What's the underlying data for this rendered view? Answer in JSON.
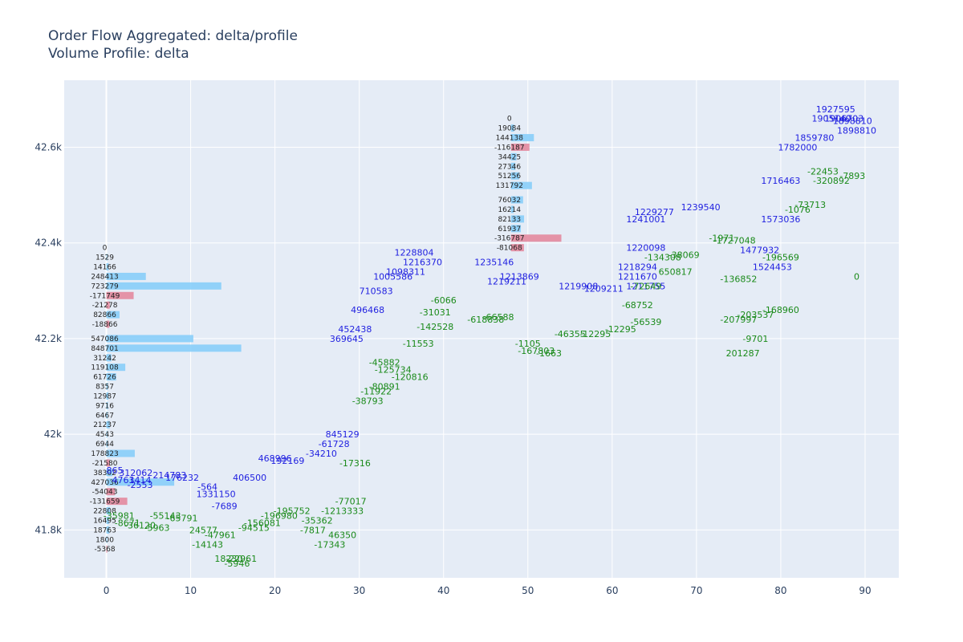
{
  "chart_data": {
    "type": "bar",
    "title": "Order Flow Aggregated: delta/profile",
    "subtitle": "Volume Profile: delta",
    "xlim": [
      -5,
      94
    ],
    "ylim": [
      41.7,
      42.74
    ],
    "x_ticks": [
      0,
      10,
      20,
      30,
      40,
      50,
      60,
      70,
      80,
      90
    ],
    "y_ticks": [
      {
        "value": 41.8,
        "label": "41.8k"
      },
      {
        "value": 42.0,
        "label": "42k"
      },
      {
        "value": 42.2,
        "label": "42.2k"
      },
      {
        "value": 42.4,
        "label": "42.4k"
      },
      {
        "value": 42.6,
        "label": "42.6k"
      }
    ],
    "grid": true,
    "colors": {
      "background": "#e5ecf6",
      "grid": "#ffffff",
      "positive": "#87cefa",
      "negative": "#e3899e",
      "text": "#2a3f5f",
      "blue_label": "#1f1fe0",
      "green_label": "#1a8a1a"
    },
    "series": [
      {
        "start_x": 0,
        "bars": [
          {
            "price": 42.39,
            "value": 0
          },
          {
            "price": 42.37,
            "value": 1529
          },
          {
            "price": 42.35,
            "value": 14166
          },
          {
            "price": 42.33,
            "value": 248413
          },
          {
            "price": 42.31,
            "value": 723279
          },
          {
            "price": 42.29,
            "value": -171749
          },
          {
            "price": 42.27,
            "value": -21278
          },
          {
            "price": 42.25,
            "value": 82866
          },
          {
            "price": 42.23,
            "value": -18866
          },
          {
            "price": 42.2,
            "value": 547086
          },
          {
            "price": 42.18,
            "value": 848701
          },
          {
            "price": 42.16,
            "value": 31242
          },
          {
            "price": 42.14,
            "value": 119108
          },
          {
            "price": 42.12,
            "value": 61726
          },
          {
            "price": 42.1,
            "value": 8357
          },
          {
            "price": 42.08,
            "value": 12987
          },
          {
            "price": 42.06,
            "value": 9716
          },
          {
            "price": 42.04,
            "value": 6467
          },
          {
            "price": 42.02,
            "value": 21237
          },
          {
            "price": 42.0,
            "value": 4543
          },
          {
            "price": 41.98,
            "value": 6944
          },
          {
            "price": 41.96,
            "value": 178823
          },
          {
            "price": 41.94,
            "value": -21580
          },
          {
            "price": 41.92,
            "value": 38302
          },
          {
            "price": 41.9,
            "value": 427036
          },
          {
            "price": 41.88,
            "value": -54043
          },
          {
            "price": 41.86,
            "value": -131659
          },
          {
            "price": 41.84,
            "value": 22808
          },
          {
            "price": 41.82,
            "value": 16495
          },
          {
            "price": 41.8,
            "value": 18763
          },
          {
            "price": 41.78,
            "value": 1800
          },
          {
            "price": 41.76,
            "value": -5368
          }
        ]
      },
      {
        "start_x": 48,
        "bars": [
          {
            "price": 42.66,
            "value": 0
          },
          {
            "price": 42.64,
            "value": 19084
          },
          {
            "price": 42.62,
            "value": 144138
          },
          {
            "price": 42.6,
            "value": -116187
          },
          {
            "price": 42.58,
            "value": 34425
          },
          {
            "price": 42.56,
            "value": 27346
          },
          {
            "price": 42.54,
            "value": 51256
          },
          {
            "price": 42.52,
            "value": 131792
          },
          {
            "price": 42.49,
            "value": 76032
          },
          {
            "price": 42.47,
            "value": 16214
          },
          {
            "price": 42.45,
            "value": 82133
          },
          {
            "price": 42.43,
            "value": 61937
          },
          {
            "price": 42.41,
            "value": -316787
          },
          {
            "price": 42.39,
            "value": -81068
          }
        ]
      }
    ],
    "annotations": [
      {
        "x": 36.5,
        "y": 42.38,
        "text": "1228804",
        "color": "blue"
      },
      {
        "x": 37.5,
        "y": 42.36,
        "text": "1216370",
        "color": "blue"
      },
      {
        "x": 35.5,
        "y": 42.34,
        "text": "1098311",
        "color": "blue"
      },
      {
        "x": 34.0,
        "y": 42.33,
        "text": "1005586",
        "color": "blue"
      },
      {
        "x": 46.0,
        "y": 42.36,
        "text": "1235146",
        "color": "blue"
      },
      {
        "x": 47.5,
        "y": 42.32,
        "text": "1219211",
        "color": "blue"
      },
      {
        "x": 49.0,
        "y": 42.33,
        "text": "1213869",
        "color": "blue"
      },
      {
        "x": 32.0,
        "y": 42.3,
        "text": "710583",
        "color": "blue"
      },
      {
        "x": 31.0,
        "y": 42.26,
        "text": "496468",
        "color": "blue"
      },
      {
        "x": 29.5,
        "y": 42.22,
        "text": "452438",
        "color": "blue"
      },
      {
        "x": 28.5,
        "y": 42.2,
        "text": "369645",
        "color": "blue"
      },
      {
        "x": 28.0,
        "y": 42.0,
        "text": "845129",
        "color": "blue"
      },
      {
        "x": 27.0,
        "y": 41.98,
        "text": "-61728",
        "color": "blue"
      },
      {
        "x": 25.5,
        "y": 41.96,
        "text": "-34210",
        "color": "blue"
      },
      {
        "x": 20.0,
        "y": 41.95,
        "text": "468996",
        "color": "blue"
      },
      {
        "x": 21.5,
        "y": 41.945,
        "text": "192169",
        "color": "blue"
      },
      {
        "x": 17.0,
        "y": 41.91,
        "text": "406500",
        "color": "blue"
      },
      {
        "x": 12.0,
        "y": 41.89,
        "text": "-564",
        "color": "blue"
      },
      {
        "x": 13.0,
        "y": 41.875,
        "text": "1331150",
        "color": "blue"
      },
      {
        "x": 1.0,
        "y": 41.925,
        "text": "865",
        "color": "blue"
      },
      {
        "x": 3.5,
        "y": 41.92,
        "text": "312062",
        "color": "blue"
      },
      {
        "x": 2.0,
        "y": 41.905,
        "text": "4763",
        "color": "blue"
      },
      {
        "x": 4.0,
        "y": 41.905,
        "text": "1414",
        "color": "blue"
      },
      {
        "x": 7.5,
        "y": 41.915,
        "text": "214783",
        "color": "blue"
      },
      {
        "x": 9.0,
        "y": 41.91,
        "text": "176232",
        "color": "blue"
      },
      {
        "x": 4.0,
        "y": 41.895,
        "text": "-2553",
        "color": "blue"
      },
      {
        "x": 14.0,
        "y": 41.85,
        "text": "-7689",
        "color": "blue"
      },
      {
        "x": 63.0,
        "y": 42.35,
        "text": "1218294",
        "color": "blue"
      },
      {
        "x": 63.0,
        "y": 42.33,
        "text": "1211670",
        "color": "blue"
      },
      {
        "x": 64.0,
        "y": 42.31,
        "text": "1211755",
        "color": "blue"
      },
      {
        "x": 64.0,
        "y": 42.39,
        "text": "1220098",
        "color": "blue"
      },
      {
        "x": 65.0,
        "y": 42.465,
        "text": "1229277",
        "color": "blue"
      },
      {
        "x": 64.0,
        "y": 42.45,
        "text": "1241001",
        "color": "blue"
      },
      {
        "x": 70.5,
        "y": 42.475,
        "text": "1239540",
        "color": "blue"
      },
      {
        "x": 56.0,
        "y": 42.31,
        "text": "1219908",
        "color": "blue"
      },
      {
        "x": 59.0,
        "y": 42.305,
        "text": "1209211",
        "color": "blue"
      },
      {
        "x": 79.0,
        "y": 42.35,
        "text": "1524453",
        "color": "blue"
      },
      {
        "x": 77.5,
        "y": 42.385,
        "text": "1477932",
        "color": "blue"
      },
      {
        "x": 80.0,
        "y": 42.45,
        "text": "1573036",
        "color": "blue"
      },
      {
        "x": 80.0,
        "y": 42.53,
        "text": "1716463",
        "color": "blue"
      },
      {
        "x": 82.0,
        "y": 42.6,
        "text": "1782000",
        "color": "blue"
      },
      {
        "x": 84.0,
        "y": 42.62,
        "text": "1859780",
        "color": "blue"
      },
      {
        "x": 86.0,
        "y": 42.66,
        "text": "1905140",
        "color": "blue"
      },
      {
        "x": 86.5,
        "y": 42.68,
        "text": "1927595",
        "color": "blue"
      },
      {
        "x": 87.5,
        "y": 42.66,
        "text": "1906703",
        "color": "blue"
      },
      {
        "x": 88.5,
        "y": 42.655,
        "text": "1898810",
        "color": "blue"
      },
      {
        "x": 89.0,
        "y": 42.635,
        "text": "1898810",
        "color": "blue"
      },
      {
        "x": 40.0,
        "y": 42.28,
        "text": "-6066",
        "color": "green"
      },
      {
        "x": 39.0,
        "y": 42.255,
        "text": "-31031",
        "color": "green"
      },
      {
        "x": 39.0,
        "y": 42.225,
        "text": "-142528",
        "color": "green"
      },
      {
        "x": 37.0,
        "y": 42.19,
        "text": "-11553",
        "color": "green"
      },
      {
        "x": 33.0,
        "y": 42.15,
        "text": "-45882",
        "color": "green"
      },
      {
        "x": 34.0,
        "y": 42.135,
        "text": "-125734",
        "color": "green"
      },
      {
        "x": 36.0,
        "y": 42.12,
        "text": "-120816",
        "color": "green"
      },
      {
        "x": 33.0,
        "y": 42.1,
        "text": "-80891",
        "color": "green"
      },
      {
        "x": 32.0,
        "y": 42.09,
        "text": "-11922",
        "color": "green"
      },
      {
        "x": 31.0,
        "y": 42.07,
        "text": "-38793",
        "color": "green"
      },
      {
        "x": 29.5,
        "y": 41.94,
        "text": "-17316",
        "color": "green"
      },
      {
        "x": 29.0,
        "y": 41.86,
        "text": "-77017",
        "color": "green"
      },
      {
        "x": 28.0,
        "y": 41.84,
        "text": "-1213333",
        "color": "green"
      },
      {
        "x": 28.0,
        "y": 41.79,
        "text": "46350",
        "color": "green"
      },
      {
        "x": 26.5,
        "y": 41.77,
        "text": "-17343",
        "color": "green"
      },
      {
        "x": 25.0,
        "y": 41.82,
        "text": "-35362",
        "color": "green"
      },
      {
        "x": 24.5,
        "y": 41.8,
        "text": "-7817",
        "color": "green"
      },
      {
        "x": 22.0,
        "y": 41.84,
        "text": "-195752",
        "color": "green"
      },
      {
        "x": 20.5,
        "y": 41.83,
        "text": "-196980",
        "color": "green"
      },
      {
        "x": 18.5,
        "y": 41.815,
        "text": "-156081",
        "color": "green"
      },
      {
        "x": 17.5,
        "y": 41.805,
        "text": "-94515",
        "color": "green"
      },
      {
        "x": 11.5,
        "y": 41.8,
        "text": "24577",
        "color": "green"
      },
      {
        "x": 13.5,
        "y": 41.79,
        "text": "-47961",
        "color": "green"
      },
      {
        "x": 12.0,
        "y": 41.77,
        "text": "-14143",
        "color": "green"
      },
      {
        "x": 14.5,
        "y": 41.74,
        "text": "18230",
        "color": "green"
      },
      {
        "x": 16.0,
        "y": 41.74,
        "text": "-22961",
        "color": "green"
      },
      {
        "x": 15.5,
        "y": 41.73,
        "text": "-5946",
        "color": "green"
      },
      {
        "x": 1.5,
        "y": 41.83,
        "text": "-35981",
        "color": "green"
      },
      {
        "x": 2.5,
        "y": 41.815,
        "text": "-8671",
        "color": "green"
      },
      {
        "x": 4.0,
        "y": 41.81,
        "text": "-36120",
        "color": "green"
      },
      {
        "x": 6.0,
        "y": 41.805,
        "text": "-5963",
        "color": "green"
      },
      {
        "x": 7.0,
        "y": 41.83,
        "text": "-55143",
        "color": "green"
      },
      {
        "x": 9.0,
        "y": 41.825,
        "text": "-65791",
        "color": "green"
      },
      {
        "x": 45.0,
        "y": 42.24,
        "text": "-618838",
        "color": "green"
      },
      {
        "x": 46.5,
        "y": 42.245,
        "text": "-66588",
        "color": "green"
      },
      {
        "x": 50.0,
        "y": 42.19,
        "text": "-1105",
        "color": "green"
      },
      {
        "x": 51.0,
        "y": 42.175,
        "text": "-167803",
        "color": "green"
      },
      {
        "x": 52.5,
        "y": 42.17,
        "text": "-1663",
        "color": "green"
      },
      {
        "x": 55.0,
        "y": 42.21,
        "text": "-46355",
        "color": "green"
      },
      {
        "x": 58.0,
        "y": 42.21,
        "text": "-12295",
        "color": "green"
      },
      {
        "x": 61.0,
        "y": 42.22,
        "text": "-12295",
        "color": "green"
      },
      {
        "x": 64.0,
        "y": 42.235,
        "text": "-56539",
        "color": "green"
      },
      {
        "x": 63.0,
        "y": 42.27,
        "text": "-68752",
        "color": "green"
      },
      {
        "x": 64.0,
        "y": 42.31,
        "text": "-72649",
        "color": "green"
      },
      {
        "x": 66.0,
        "y": 42.37,
        "text": "-134308",
        "color": "green"
      },
      {
        "x": 68.5,
        "y": 42.375,
        "text": "-38069",
        "color": "green"
      },
      {
        "x": 67.5,
        "y": 42.34,
        "text": "650817",
        "color": "green"
      },
      {
        "x": 75.0,
        "y": 42.325,
        "text": "-136852",
        "color": "green"
      },
      {
        "x": 75.0,
        "y": 42.24,
        "text": "-207997",
        "color": "green"
      },
      {
        "x": 77.0,
        "y": 42.25,
        "text": "-203537",
        "color": "green"
      },
      {
        "x": 80.0,
        "y": 42.26,
        "text": "-168960",
        "color": "green"
      },
      {
        "x": 77.0,
        "y": 42.2,
        "text": "-9701",
        "color": "green"
      },
      {
        "x": 75.5,
        "y": 42.17,
        "text": "201287",
        "color": "green"
      },
      {
        "x": 74.5,
        "y": 42.405,
        "text": "-1727048",
        "color": "green"
      },
      {
        "x": 73.0,
        "y": 42.41,
        "text": "-1971",
        "color": "green"
      },
      {
        "x": 80.0,
        "y": 42.37,
        "text": "-196569",
        "color": "green"
      },
      {
        "x": 82.0,
        "y": 42.47,
        "text": "-1076",
        "color": "green"
      },
      {
        "x": 83.5,
        "y": 42.48,
        "text": "-73713",
        "color": "green"
      },
      {
        "x": 86.0,
        "y": 42.53,
        "text": "-320892",
        "color": "green"
      },
      {
        "x": 85.0,
        "y": 42.55,
        "text": "-22453",
        "color": "green"
      },
      {
        "x": 88.5,
        "y": 42.54,
        "text": "-7893",
        "color": "green"
      },
      {
        "x": 89.0,
        "y": 42.33,
        "text": "0",
        "color": "green"
      }
    ]
  }
}
